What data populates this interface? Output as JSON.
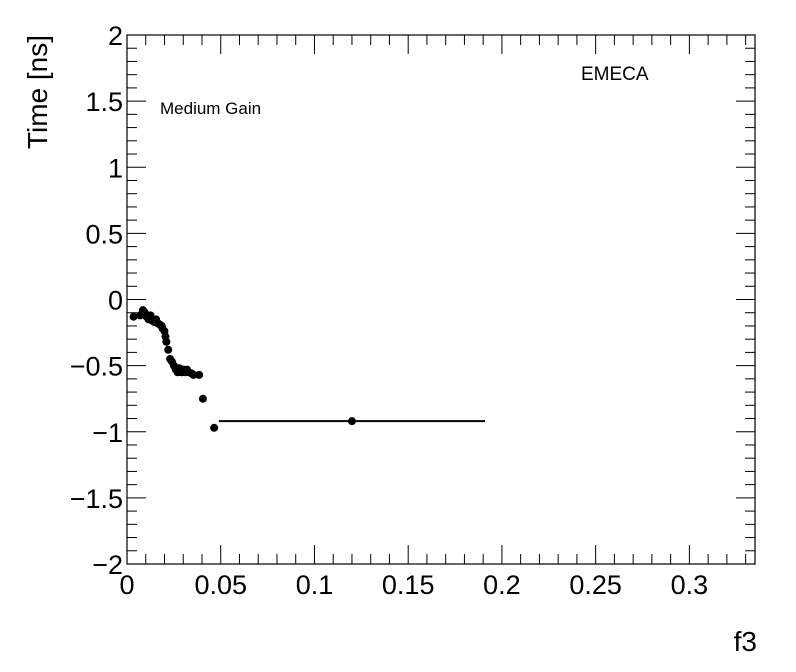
{
  "chart_data": {
    "type": "scatter",
    "title": "",
    "xlabel": "f3",
    "ylabel": "Time [ns]",
    "xlim": [
      0,
      0.335
    ],
    "ylim": [
      -2,
      2
    ],
    "grid": false,
    "x_ticks": [
      0,
      0.05,
      0.1,
      0.15,
      0.2,
      0.25,
      0.3
    ],
    "x_tick_labels": [
      "0",
      "0.05",
      "0.1",
      "0.15",
      "0.2",
      "0.25",
      "0.3"
    ],
    "y_ticks": [
      -2,
      -1.5,
      -1,
      -0.5,
      0,
      0.5,
      1,
      1.5,
      2
    ],
    "y_tick_labels": [
      "−2",
      "−1.5",
      "−1",
      "−0.5",
      "0",
      "0.5",
      "1",
      "1.5",
      "2"
    ],
    "annotations": {
      "gain_label": "Medium Gain",
      "region_label": "EMECA"
    },
    "series": [
      {
        "color": "#000000",
        "points": [
          {
            "x": 0.0035,
            "y": -0.13,
            "xerr": 0.0015
          },
          {
            "x": 0.007,
            "y": -0.12,
            "xerr": 0.001
          },
          {
            "x": 0.0085,
            "y": -0.08,
            "xerr": 0.001
          },
          {
            "x": 0.0095,
            "y": -0.1,
            "xerr": 0.001
          },
          {
            "x": 0.0105,
            "y": -0.13,
            "xerr": 0.001
          },
          {
            "x": 0.0115,
            "y": -0.15,
            "xerr": 0.001
          },
          {
            "x": 0.0125,
            "y": -0.12,
            "xerr": 0.001
          },
          {
            "x": 0.0135,
            "y": -0.16,
            "xerr": 0.001
          },
          {
            "x": 0.0145,
            "y": -0.17,
            "xerr": 0.001
          },
          {
            "x": 0.0155,
            "y": -0.15,
            "xerr": 0.001
          },
          {
            "x": 0.0165,
            "y": -0.18,
            "xerr": 0.001
          },
          {
            "x": 0.0175,
            "y": -0.19,
            "xerr": 0.001
          },
          {
            "x": 0.0185,
            "y": -0.2,
            "xerr": 0.001
          },
          {
            "x": 0.019,
            "y": -0.22,
            "xerr": 0.001
          },
          {
            "x": 0.02,
            "y": -0.24,
            "xerr": 0.001
          },
          {
            "x": 0.0205,
            "y": -0.28,
            "xerr": 0.001
          },
          {
            "x": 0.021,
            "y": -0.32,
            "xerr": 0.001
          },
          {
            "x": 0.022,
            "y": -0.38,
            "xerr": 0.001
          },
          {
            "x": 0.023,
            "y": -0.45,
            "xerr": 0.001
          },
          {
            "x": 0.024,
            "y": -0.47,
            "xerr": 0.001
          },
          {
            "x": 0.025,
            "y": -0.5,
            "xerr": 0.001
          },
          {
            "x": 0.026,
            "y": -0.53,
            "xerr": 0.001
          },
          {
            "x": 0.027,
            "y": -0.55,
            "xerr": 0.001
          },
          {
            "x": 0.028,
            "y": -0.52,
            "xerr": 0.001
          },
          {
            "x": 0.029,
            "y": -0.55,
            "xerr": 0.001
          },
          {
            "x": 0.03,
            "y": -0.53,
            "xerr": 0.001
          },
          {
            "x": 0.031,
            "y": -0.55,
            "xerr": 0.001
          },
          {
            "x": 0.032,
            "y": -0.53,
            "xerr": 0.001
          },
          {
            "x": 0.033,
            "y": -0.55,
            "xerr": 0.001
          },
          {
            "x": 0.0345,
            "y": -0.56,
            "xerr": 0.001
          },
          {
            "x": 0.0355,
            "y": -0.57,
            "xerr": 0.001
          },
          {
            "x": 0.0385,
            "y": -0.57,
            "xerr": 0.0015
          },
          {
            "x": 0.0405,
            "y": -0.75,
            "xerr": 0.0015
          },
          {
            "x": 0.0465,
            "y": -0.97,
            "xerr": 0.002
          },
          {
            "x": 0.12,
            "y": -0.92,
            "xerr": 0.071
          }
        ]
      }
    ]
  }
}
